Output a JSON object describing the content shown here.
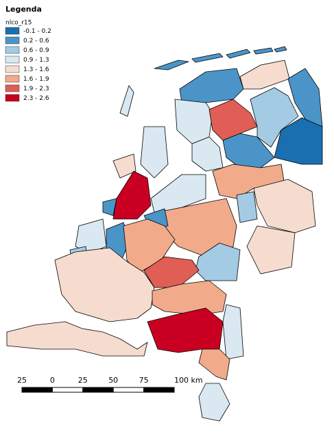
{
  "legend": {
    "title": "Legenda",
    "field": "nlco_r15",
    "items": [
      {
        "label": "-0.1 - 0.2",
        "color": "#1a6fb0"
      },
      {
        "label": "0.2 - 0.6",
        "color": "#4b94c8"
      },
      {
        "label": "0.6 - 0.9",
        "color": "#a3cbe3"
      },
      {
        "label": "0.9 - 1.3",
        "color": "#d9e8f1"
      },
      {
        "label": "1.3 - 1.6",
        "color": "#f6dccf"
      },
      {
        "label": "1.6 - 1.9",
        "color": "#f1ab8b"
      },
      {
        "label": "1.9 - 2.3",
        "color": "#e05e55"
      },
      {
        "label": "2.3 - 2.6",
        "color": "#c90021"
      }
    ]
  },
  "scale_bar": {
    "labels": [
      "25",
      "0",
      "25",
      "50",
      "75",
      "100 km"
    ]
  }
}
